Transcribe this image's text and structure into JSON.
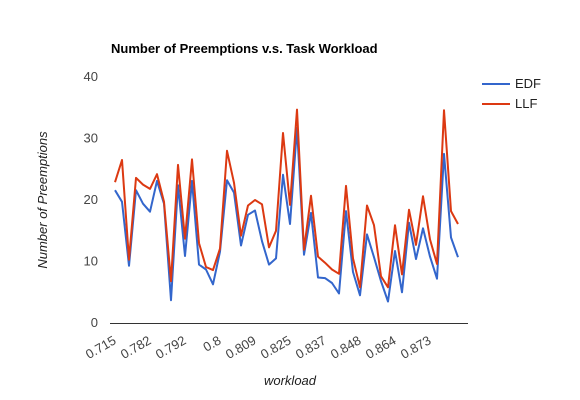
{
  "chart_data": {
    "type": "line",
    "title": "Number of Preemptions v.s. Task Workload",
    "xlabel": "workload",
    "ylabel": "Number of Preemptions",
    "ylim": [
      0,
      40
    ],
    "yticks": [
      0,
      10,
      20,
      30,
      40
    ],
    "xtick_labels": [
      "0.715",
      "0.782",
      "0.792",
      "0.8",
      "0.809",
      "0.825",
      "0.837",
      "0.848",
      "0.864",
      "0.873"
    ],
    "grid": false,
    "legend_position": "right",
    "series": [
      {
        "name": "EDF",
        "color": "#3366cc",
        "values": [
          21.6,
          19.7,
          9.3,
          21.6,
          19.4,
          18.1,
          23.1,
          19.4,
          3.7,
          22.4,
          10.9,
          23.1,
          9.5,
          8.7,
          6.3,
          11.6,
          23.2,
          21.2,
          12.6,
          17.6,
          18.3,
          13.3,
          9.5,
          10.5,
          24.1,
          16.1,
          31.7,
          11.1,
          17.9,
          7.4,
          7.3,
          6.5,
          4.8,
          18.2,
          8.3,
          4.5,
          14.4,
          10.7,
          6.8,
          3.5,
          11.7,
          5.0,
          16.3,
          10.4,
          15.4,
          10.8,
          7.2,
          27.5,
          13.9,
          10.7
        ]
      },
      {
        "name": "LLF",
        "color": "#dc3912",
        "values": [
          22.9,
          26.5,
          10.3,
          23.6,
          22.5,
          21.8,
          24.2,
          19.7,
          6.8,
          25.7,
          13.7,
          26.6,
          13.0,
          9.1,
          8.6,
          12.1,
          28.0,
          22.8,
          14.2,
          19.1,
          20.0,
          19.3,
          12.3,
          15.0,
          30.9,
          19.2,
          34.7,
          11.9,
          20.7,
          10.8,
          9.8,
          8.7,
          8.0,
          22.3,
          10.5,
          5.8,
          19.1,
          15.9,
          7.6,
          5.8,
          15.9,
          7.9,
          18.4,
          12.7,
          20.6,
          13.6,
          9.6,
          34.6,
          18.2,
          16.1
        ]
      }
    ]
  }
}
